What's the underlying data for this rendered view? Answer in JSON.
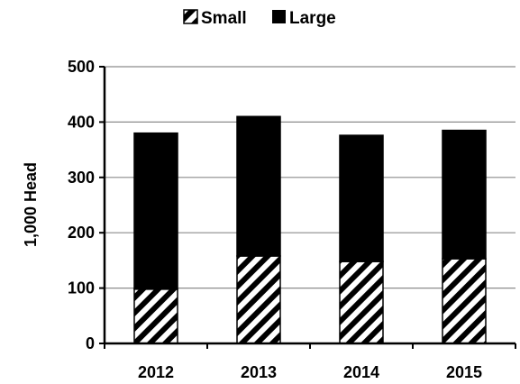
{
  "chart_data": {
    "type": "bar",
    "stacked": true,
    "categories": [
      "2012",
      "2013",
      "2014",
      "2015"
    ],
    "series": [
      {
        "name": "Small",
        "values": [
          98,
          158,
          148,
          153
        ],
        "fill": "hatched"
      },
      {
        "name": "Large",
        "values": [
          282,
          252,
          228,
          232
        ],
        "fill": "#000000"
      }
    ],
    "xlabel": "",
    "ylabel": "1,000 Head",
    "ylim": [
      0,
      500
    ],
    "yticks": [
      "0",
      "100",
      "200",
      "300",
      "400",
      "500"
    ],
    "grid": true,
    "legend_position": "top"
  }
}
